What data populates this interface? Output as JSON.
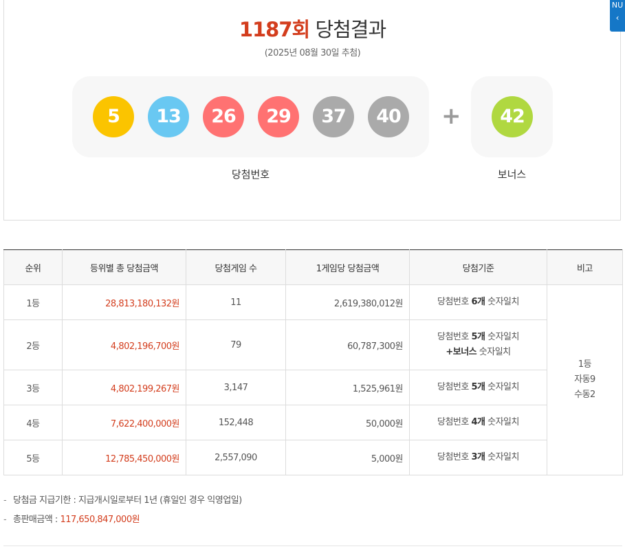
{
  "header": {
    "round": "1187회",
    "title_suffix": "당첨결과",
    "draw_date": "(2025년 08월 30일 추첨)"
  },
  "nav_tab": {
    "label": "NU",
    "arrow": "‹"
  },
  "winning_numbers": {
    "label": "당첨번호",
    "balls": [
      {
        "number": "5",
        "color": "#fbc400"
      },
      {
        "number": "13",
        "color": "#69c8f2"
      },
      {
        "number": "26",
        "color": "#ff7272"
      },
      {
        "number": "29",
        "color": "#ff7272"
      },
      {
        "number": "37",
        "color": "#aaaaaa"
      },
      {
        "number": "40",
        "color": "#aaaaaa"
      }
    ]
  },
  "plus_symbol": "+",
  "bonus": {
    "label": "보너스",
    "ball": {
      "number": "42",
      "color": "#b0d840"
    }
  },
  "table": {
    "headers": [
      "순위",
      "등위별 총 당첨금액",
      "당첨게임 수",
      "1게임당 당첨금액",
      "당첨기준",
      "비고"
    ],
    "rows": [
      {
        "rank": "1등",
        "total": "28,813,180,132원",
        "winners": "11",
        "per_game": "2,619,380,012원",
        "criteria_pre": "당첨번호 ",
        "criteria_bold": "6개",
        "criteria_post": " 숫자일치",
        "criteria_line2_bold": "",
        "criteria_line2": ""
      },
      {
        "rank": "2등",
        "total": "4,802,196,700원",
        "winners": "79",
        "per_game": "60,787,300원",
        "criteria_pre": "당첨번호 ",
        "criteria_bold": "5개",
        "criteria_post": " 숫자일치",
        "criteria_line2_bold": "+보너스",
        "criteria_line2": " 숫자일치"
      },
      {
        "rank": "3등",
        "total": "4,802,199,267원",
        "winners": "3,147",
        "per_game": "1,525,961원",
        "criteria_pre": "당첨번호 ",
        "criteria_bold": "5개",
        "criteria_post": " 숫자일치",
        "criteria_line2_bold": "",
        "criteria_line2": ""
      },
      {
        "rank": "4등",
        "total": "7,622,400,000원",
        "winners": "152,448",
        "per_game": "50,000원",
        "criteria_pre": "당첨번호 ",
        "criteria_bold": "4개",
        "criteria_post": " 숫자일치",
        "criteria_line2_bold": "",
        "criteria_line2": ""
      },
      {
        "rank": "5등",
        "total": "12,785,450,000원",
        "winners": "2,557,090",
        "per_game": "5,000원",
        "criteria_pre": "당첨번호 ",
        "criteria_bold": "3개",
        "criteria_post": " 숫자일치",
        "criteria_line2_bold": "",
        "criteria_line2": ""
      }
    ],
    "remark": {
      "line1": "1등",
      "line2": "자동9",
      "line3": "수동2"
    }
  },
  "notes": {
    "dash": "-",
    "deadline": "당첨금 지급기한 : 지급개시일로부터 1년 (휴일인 경우 익영업일)",
    "sales_label": "총판매금액 : ",
    "sales_value": "117,650,847,000원"
  }
}
